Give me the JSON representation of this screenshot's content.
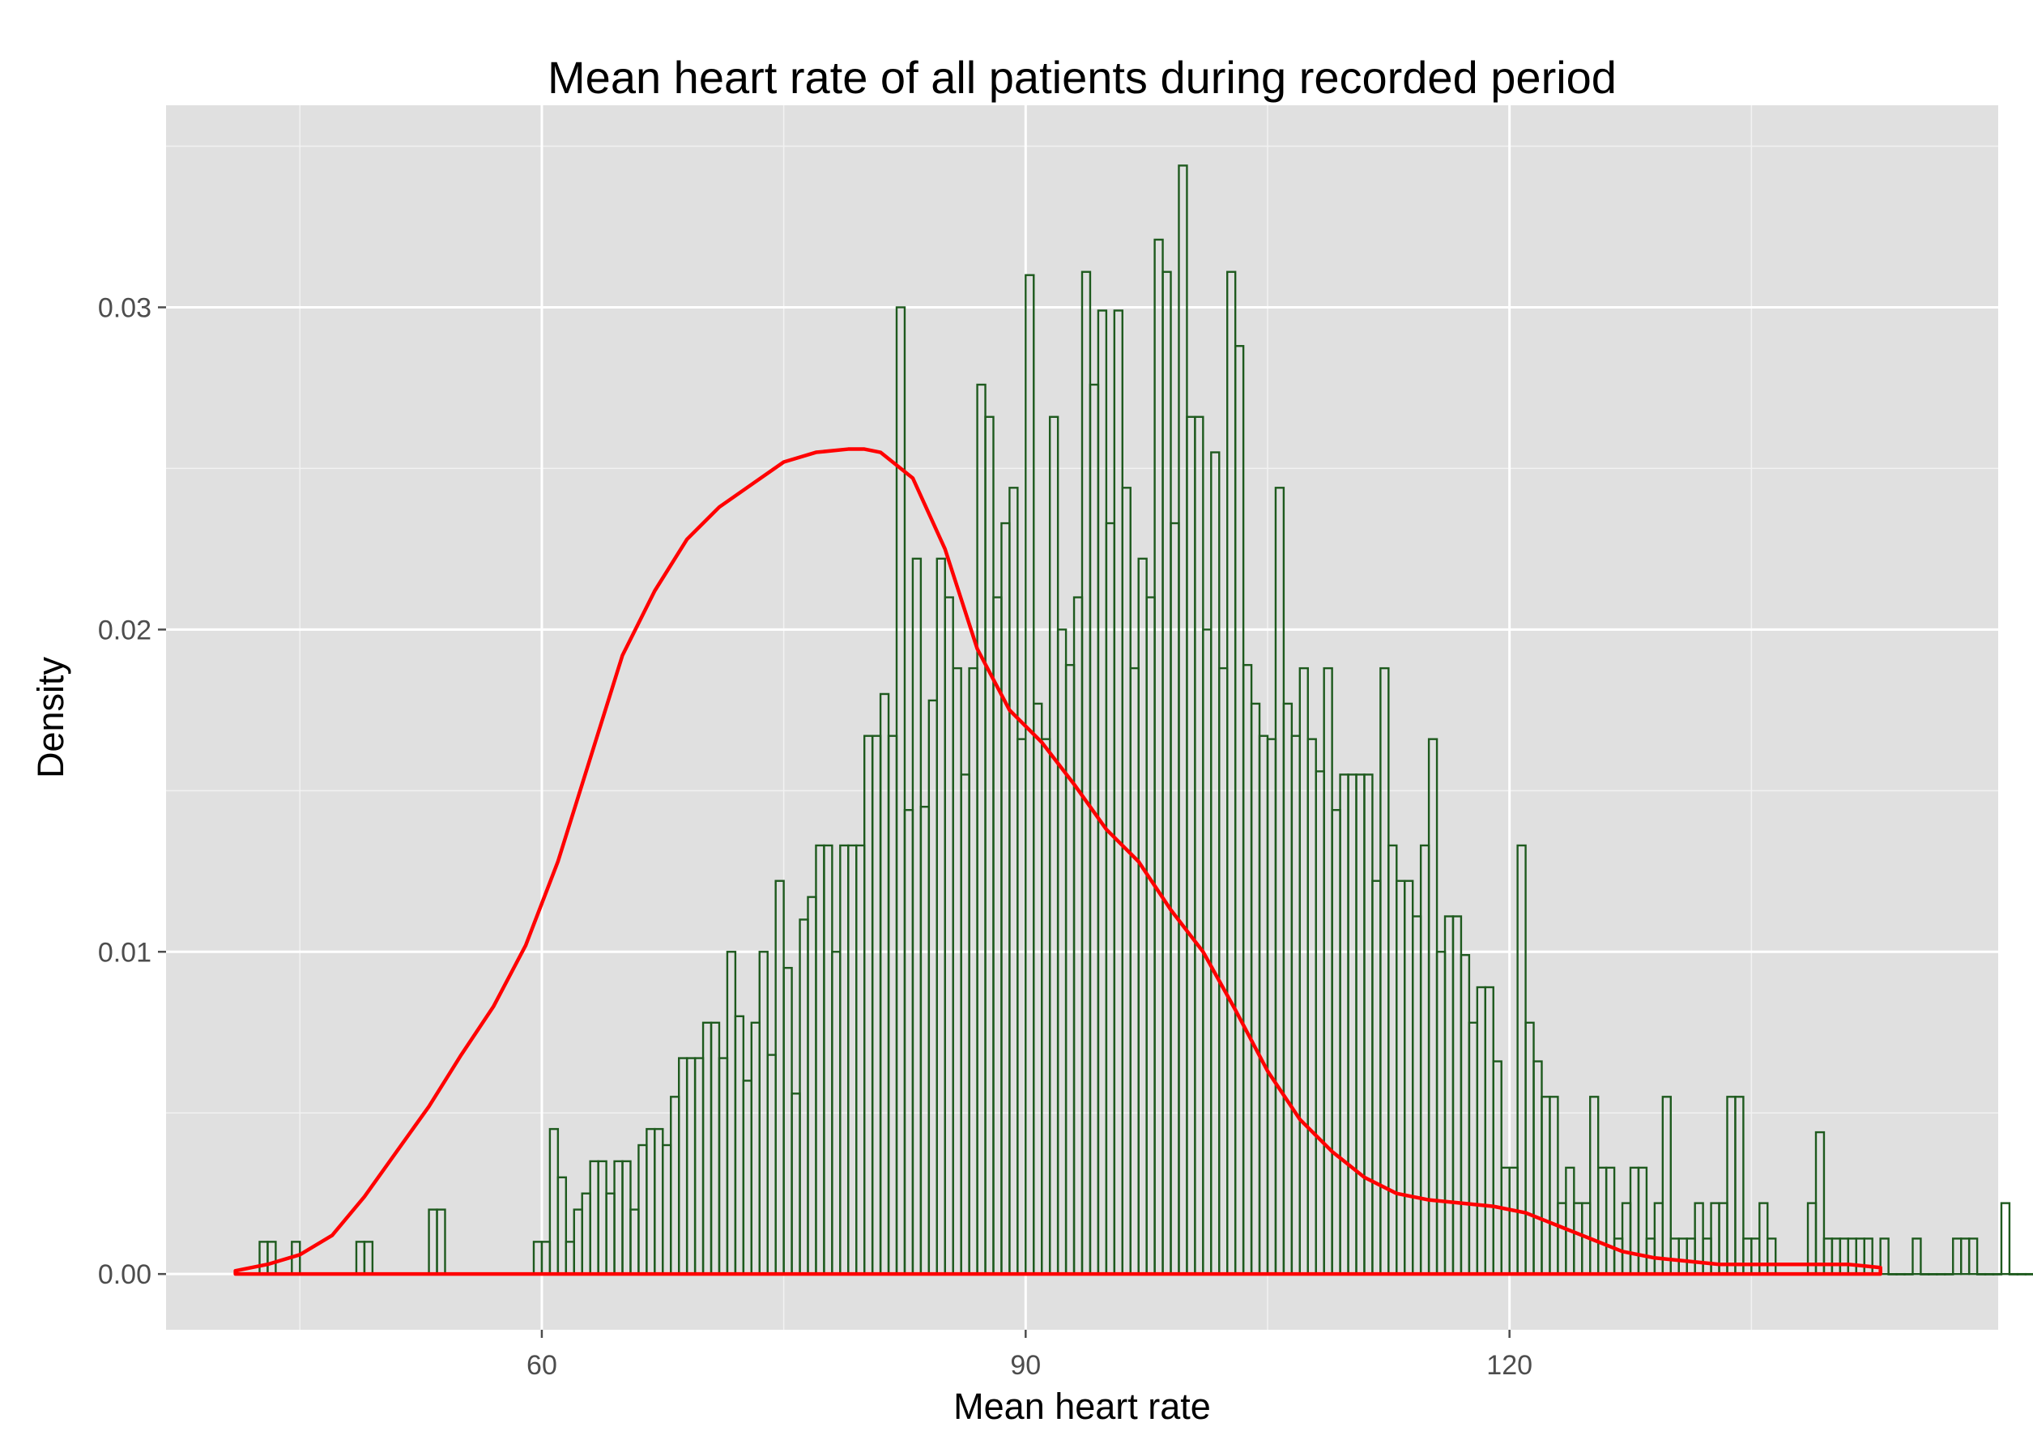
{
  "chart_data": {
    "type": "bar",
    "subtype": "histogram-with-density",
    "title": "Mean heart rate of all patients during recorded period",
    "xlabel": "Mean heart rate",
    "ylabel": "Density",
    "xlim": [
      36.7,
      150.3
    ],
    "ylim": [
      -0.00173,
      0.03627
    ],
    "x_ticks": [
      60,
      90,
      120
    ],
    "x_tick_labels": [
      "60",
      "90",
      "120"
    ],
    "y_ticks": [
      0.0,
      0.01,
      0.02,
      0.03
    ],
    "y_tick_labels": [
      "0.00",
      "0.01",
      "0.02",
      "0.03"
    ],
    "x_minor_ticks": [
      45,
      75,
      105,
      135
    ],
    "y_minor_ticks": [
      0.005,
      0.015,
      0.025,
      0.035
    ],
    "grid": true,
    "background_color": "#E0E0E0",
    "grid_color": "#FFFFFF",
    "bar_outline_color": "#1E5A1E",
    "density_color": "#FF0000",
    "histogram": {
      "bin_start": 42.0,
      "bin_width": 0.5,
      "values": [
        0,
        0.001,
        0.001,
        0,
        0,
        0.001,
        0,
        0,
        0,
        0,
        0,
        0,
        0,
        0.001,
        0.001,
        0,
        0,
        0,
        0,
        0,
        0,
        0,
        0.002,
        0.002,
        0,
        0,
        0,
        0,
        0,
        0,
        0,
        0,
        0,
        0,
        0,
        0.001,
        0.001,
        0.0045,
        0.003,
        0.001,
        0.002,
        0.0025,
        0.0035,
        0.0035,
        0.0025,
        0.0035,
        0.0035,
        0.002,
        0.004,
        0.0045,
        0.0045,
        0.004,
        0.0055,
        0.0067,
        0.0067,
        0.0067,
        0.0078,
        0.0078,
        0.0067,
        0.01,
        0.008,
        0.006,
        0.0078,
        0.01,
        0.0068,
        0.0122,
        0.0095,
        0.0056,
        0.011,
        0.0117,
        0.0133,
        0.0133,
        0.01,
        0.0133,
        0.0133,
        0.0133,
        0.0167,
        0.0167,
        0.018,
        0.0167,
        0.03,
        0.0144,
        0.0222,
        0.0145,
        0.0178,
        0.0222,
        0.021,
        0.0188,
        0.0155,
        0.0188,
        0.0276,
        0.0266,
        0.021,
        0.0233,
        0.0244,
        0.0166,
        0.031,
        0.0177,
        0.0166,
        0.0266,
        0.02,
        0.0189,
        0.021,
        0.0311,
        0.0276,
        0.0299,
        0.0233,
        0.0299,
        0.0244,
        0.0188,
        0.0222,
        0.021,
        0.0321,
        0.0311,
        0.0233,
        0.0344,
        0.0266,
        0.0266,
        0.02,
        0.0255,
        0.0188,
        0.0311,
        0.0288,
        0.0189,
        0.0177,
        0.0167,
        0.0166,
        0.0244,
        0.0177,
        0.0167,
        0.0188,
        0.0166,
        0.0156,
        0.0188,
        0.0144,
        0.0155,
        0.0155,
        0.0155,
        0.0155,
        0.0122,
        0.0188,
        0.0133,
        0.0122,
        0.0122,
        0.0111,
        0.0133,
        0.0166,
        0.01,
        0.0111,
        0.0111,
        0.0099,
        0.0078,
        0.0089,
        0.0089,
        0.0066,
        0.0033,
        0.0033,
        0.0133,
        0.0078,
        0.0066,
        0.0055,
        0.0055,
        0.0022,
        0.0033,
        0.0022,
        0.0022,
        0.0055,
        0.0033,
        0.0033,
        0.0011,
        0.0022,
        0.0033,
        0.0033,
        0.0011,
        0.0022,
        0.0055,
        0.0011,
        0.0011,
        0.0011,
        0.0022,
        0.0011,
        0.0022,
        0.0022,
        0.0055,
        0.0055,
        0.0011,
        0.0011,
        0.0022,
        0.0011,
        0,
        0,
        0,
        0,
        0.0022,
        0.0044,
        0.0011,
        0.0011,
        0.0011,
        0.0011,
        0.0011,
        0.0011,
        0,
        0.0011,
        0,
        0,
        0,
        0.0011,
        0,
        0,
        0,
        0,
        0.0011,
        0.0011,
        0.0011,
        0,
        0,
        0,
        0.0022,
        0,
        0,
        0,
        0,
        0,
        0.0011,
        0
      ]
    },
    "density_curve": {
      "x": [
        41,
        43,
        45,
        47,
        49,
        51,
        53,
        55,
        57,
        59,
        61,
        63,
        65,
        67,
        69,
        71,
        73,
        75,
        77,
        79,
        80,
        81,
        83,
        85,
        87,
        89,
        91,
        93,
        95,
        97,
        99,
        101,
        103,
        105,
        107,
        109,
        111,
        113,
        115,
        117,
        119,
        121,
        123,
        125,
        127,
        129,
        131,
        133,
        135,
        137,
        139,
        141,
        143
      ],
      "y": [
        0.0001,
        0.0003,
        0.0006,
        0.0012,
        0.0024,
        0.0038,
        0.0052,
        0.0068,
        0.0083,
        0.0102,
        0.0128,
        0.016,
        0.0192,
        0.0212,
        0.0228,
        0.0238,
        0.0245,
        0.0252,
        0.0255,
        0.0256,
        0.0256,
        0.0255,
        0.0247,
        0.0225,
        0.0194,
        0.0175,
        0.0165,
        0.0152,
        0.0138,
        0.0128,
        0.0113,
        0.01,
        0.0082,
        0.0063,
        0.0048,
        0.0038,
        0.003,
        0.0025,
        0.0023,
        0.0022,
        0.0021,
        0.0019,
        0.0015,
        0.0011,
        0.0007,
        0.0005,
        0.0004,
        0.0003,
        0.0003,
        0.0003,
        0.0003,
        0.0003,
        0.0002
      ]
    }
  }
}
